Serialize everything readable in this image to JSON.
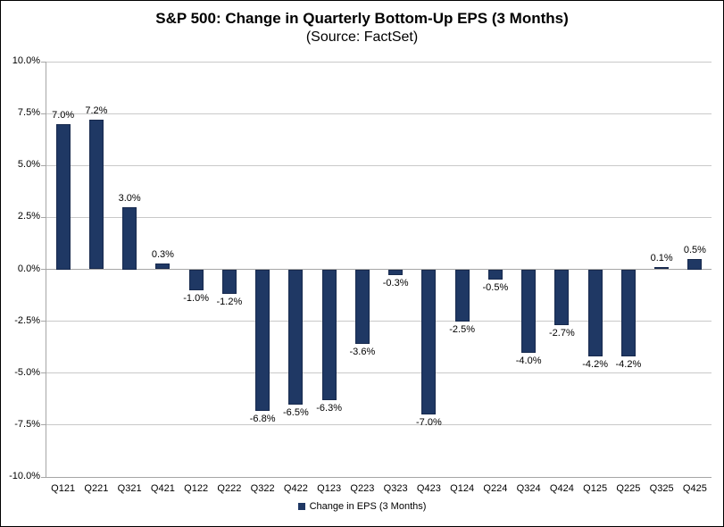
{
  "chart_data": {
    "type": "bar",
    "title": "S&P 500: Change in Quarterly Bottom-Up EPS (3 Months)",
    "subtitle": "(Source: FactSet)",
    "categories": [
      "Q121",
      "Q221",
      "Q321",
      "Q421",
      "Q122",
      "Q222",
      "Q322",
      "Q422",
      "Q123",
      "Q223",
      "Q323",
      "Q423",
      "Q124",
      "Q224",
      "Q324",
      "Q424",
      "Q125",
      "Q225",
      "Q325",
      "Q425"
    ],
    "values": [
      7.0,
      7.2,
      3.0,
      0.3,
      -1.0,
      -1.2,
      -6.8,
      -6.5,
      -6.3,
      -3.6,
      -0.3,
      -7.0,
      -2.5,
      -0.5,
      -4.0,
      -2.7,
      -4.2,
      -4.2,
      0.1,
      0.5
    ],
    "value_labels": [
      "7.0%",
      "7.2%",
      "3.0%",
      "0.3%",
      "-1.0%",
      "-1.2%",
      "-6.8%",
      "-6.5%",
      "-6.3%",
      "-3.6%",
      "-0.3%",
      "-7.0%",
      "-2.5%",
      "-0.5%",
      "-4.0%",
      "-2.7%",
      "-4.2%",
      "-4.2%",
      "0.1%",
      "0.5%"
    ],
    "series_name": "Change in EPS (3 Months)",
    "xlabel": "",
    "ylabel": "",
    "ylim": [
      -10,
      10
    ],
    "y_ticks": [
      10,
      7.5,
      5,
      2.5,
      0,
      -2.5,
      -5,
      -7.5,
      -10
    ],
    "y_tick_labels": [
      "10.0%",
      "7.5%",
      "5.0%",
      "2.5%",
      "0.0%",
      "-2.5%",
      "-5.0%",
      "-7.5%",
      "-10.0%"
    ],
    "grid": true,
    "legend_position": "bottom",
    "legend_label": "Change in EPS (3 Months)",
    "colors": {
      "bar": "#1f3864",
      "bar_border": "#17294d",
      "gridline": "#c9c9c9",
      "axis": "#a6a6a6",
      "text": "#000000"
    }
  }
}
